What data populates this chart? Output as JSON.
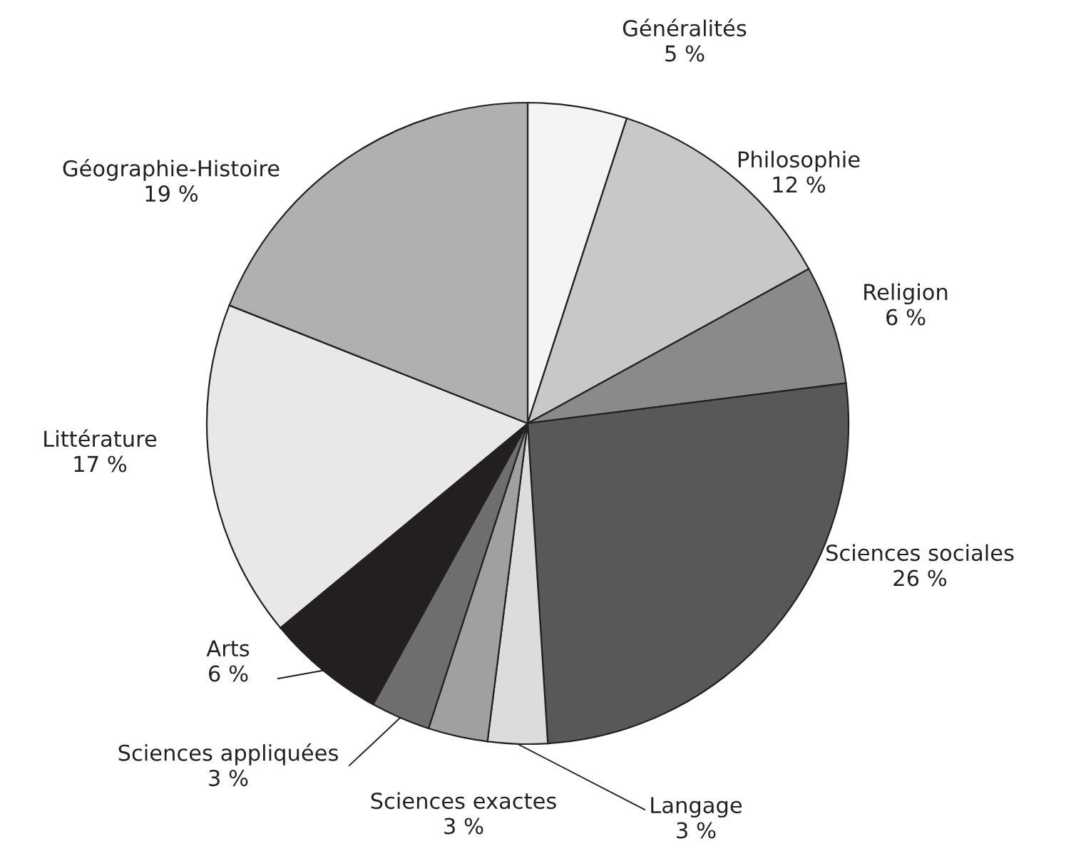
{
  "chart_data": {
    "type": "pie",
    "categories": [
      "Généralités",
      "Philosophie",
      "Religion",
      "Sciences sociales",
      "Langage",
      "Sciences exactes",
      "Sciences appliquées",
      "Arts",
      "Littérature",
      "Géographie-Histoire"
    ],
    "values": [
      5,
      12,
      6,
      26,
      3,
      3,
      3,
      6,
      17,
      19
    ],
    "value_labels": [
      "5 %",
      "12 %",
      "6 %",
      "26 %",
      "3 %",
      "3 %",
      "3 %",
      "6 %",
      "17 %",
      "19 %"
    ],
    "colors": [
      "#f4f4f4",
      "#c8c8c8",
      "#8a8a8a",
      "#585858",
      "#dcdcdc",
      "#a0a0a0",
      "#6e6e6e",
      "#231f20",
      "#e8e8e8",
      "#b0b0b0"
    ],
    "legend": false
  }
}
